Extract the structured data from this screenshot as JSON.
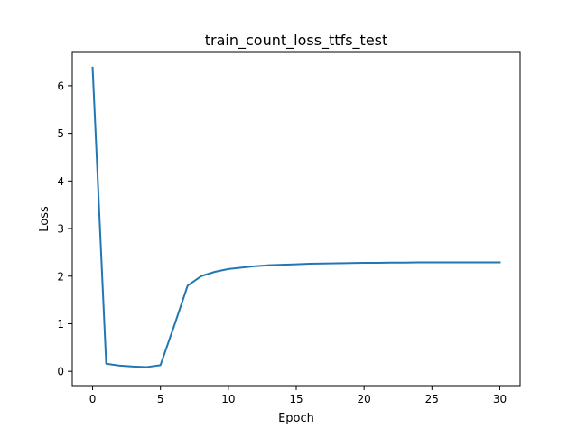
{
  "chart_data": {
    "type": "line",
    "title": "train_count_loss_ttfs_test",
    "xlabel": "Epoch",
    "ylabel": "Loss",
    "xlim": [
      -1.5,
      31.5
    ],
    "ylim": [
      -0.3,
      6.7
    ],
    "xticks": [
      0,
      5,
      10,
      15,
      20,
      25,
      30
    ],
    "yticks": [
      0,
      1,
      2,
      3,
      4,
      5,
      6
    ],
    "grid": false,
    "legend": "none",
    "series": [
      {
        "color": "#1f77b4",
        "x": [
          0,
          1,
          2,
          3,
          4,
          5,
          6,
          7,
          8,
          9,
          10,
          11,
          12,
          13,
          14,
          15,
          16,
          17,
          18,
          19,
          20,
          21,
          22,
          23,
          24,
          25,
          26,
          27,
          28,
          29,
          30
        ],
        "y": [
          6.38,
          0.16,
          0.12,
          0.1,
          0.09,
          0.13,
          0.95,
          1.8,
          2.0,
          2.09,
          2.15,
          2.18,
          2.21,
          2.23,
          2.24,
          2.25,
          2.26,
          2.265,
          2.27,
          2.275,
          2.28,
          2.28,
          2.285,
          2.285,
          2.29,
          2.29,
          2.29,
          2.29,
          2.29,
          2.29,
          2.29
        ]
      }
    ]
  }
}
